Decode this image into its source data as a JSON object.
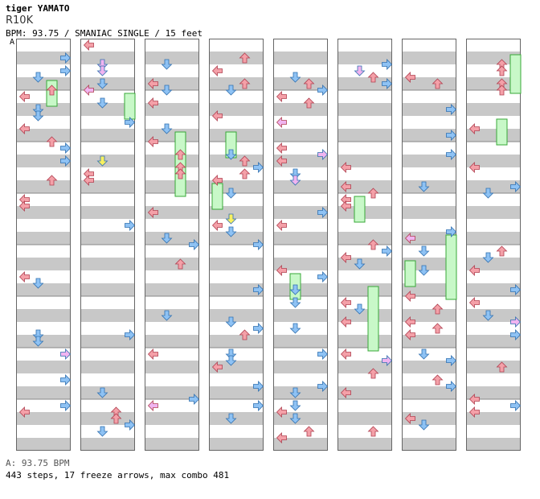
{
  "header": {
    "title": "tiger YAMATO",
    "subtitle": "R10K",
    "chart_info": "BPM: 93.75 / SMANIAC SINGLE / 15 feet",
    "bpm_marker": "A"
  },
  "footer": {
    "bpm_line": "A: 93.75 BPM",
    "stats": "443 steps, 17 freeze arrows, max combo 481"
  },
  "colors": {
    "left": "#f4a0a8",
    "down": "#8ec2f4",
    "up": "#f4a0a8",
    "right": "#8ec2f4",
    "pink": "#f0b4f0",
    "yellow": "#f8f060",
    "freeze": "#c8f8c8",
    "freeze_border": "#38a838",
    "stripe": "#c8c8c8"
  },
  "icons": [
    "left-arrow-icon",
    "down-arrow-icon",
    "up-arrow-icon",
    "right-arrow-icon",
    "freeze-arrow-icon"
  ]
}
